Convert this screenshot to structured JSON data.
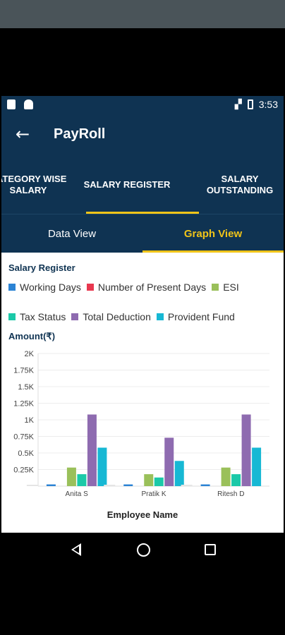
{
  "status_bar": {
    "time": "3:53"
  },
  "app_bar": {
    "title": "PayRoll"
  },
  "tabs": [
    {
      "label": "CATEGORY WISE\nSALARY",
      "active": false
    },
    {
      "label": "SALARY REGISTER",
      "active": true
    },
    {
      "label": "SALARY\nOUTSTANDING",
      "active": false
    }
  ],
  "view_tabs": [
    {
      "label": "Data View",
      "active": false
    },
    {
      "label": "Graph View",
      "active": true
    }
  ],
  "chart_header": "Salary Register",
  "colors": {
    "primary": "#0f3352",
    "accent": "#f0c419"
  },
  "chart_data": {
    "type": "bar",
    "title": "Salary Register",
    "ylabel": "Amount(₹)",
    "xlabel": "Employee Name",
    "categories": [
      "Anita S",
      "Pratik K",
      "Ritesh D"
    ],
    "ylim": [
      0,
      2000
    ],
    "yticks": [
      "0.25K",
      "0.5K",
      "0.75K",
      "1K",
      "1.25K",
      "1.5K",
      "1.75K",
      "2K"
    ],
    "legend_position": "top",
    "grid": true,
    "series": [
      {
        "name": "Working Days",
        "color": "#2b83d4",
        "values": [
          26,
          26,
          26
        ]
      },
      {
        "name": "Number of Present Days",
        "color": "#e8384f",
        "values": [
          0,
          0,
          0
        ]
      },
      {
        "name": "ESI",
        "color": "#9ac05a",
        "values": [
          280,
          180,
          280
        ]
      },
      {
        "name": "Tax Status",
        "color": "#1bc9a8",
        "values": [
          180,
          130,
          180
        ]
      },
      {
        "name": "Total Deduction",
        "color": "#8e6bb0",
        "values": [
          1080,
          730,
          1080
        ]
      },
      {
        "name": "Provident Fund",
        "color": "#17b8d4",
        "values": [
          580,
          380,
          580
        ]
      }
    ]
  }
}
